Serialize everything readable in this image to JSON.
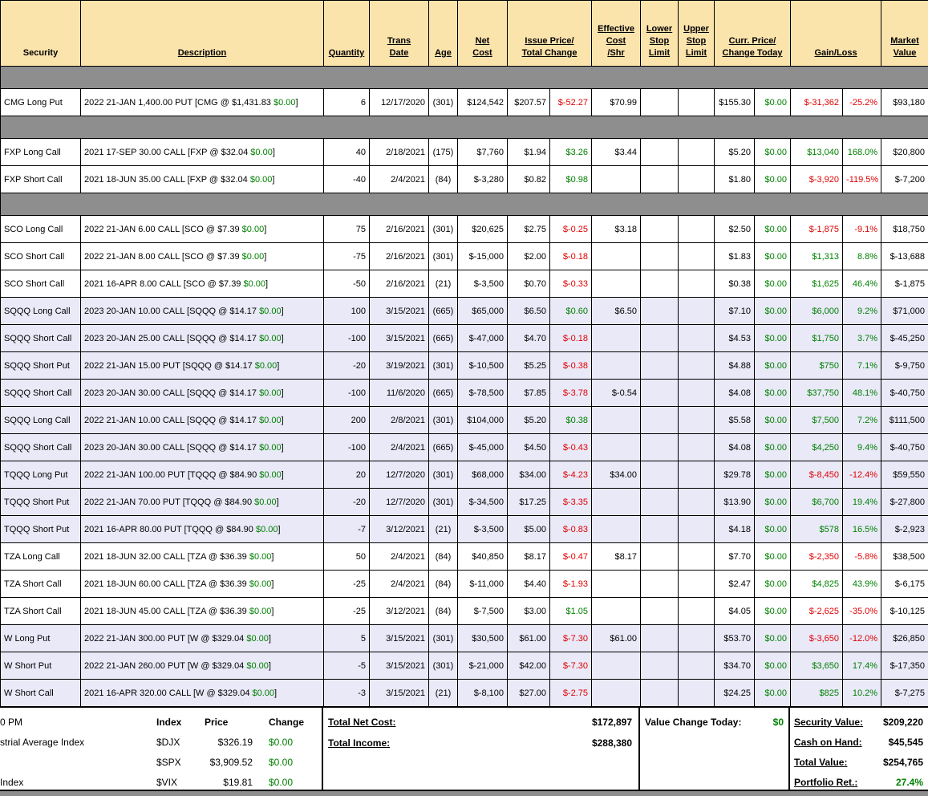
{
  "colors": {
    "header_bg": "#FBE3AC",
    "bar_bg": "#8E8E8E",
    "shaded_row_bg": "#E9E9F8",
    "positive": "#008000",
    "negative": "#E00000",
    "border": "#000000"
  },
  "header": {
    "columns": [
      {
        "id": "security",
        "lines": [
          "Security"
        ],
        "underline": false,
        "span": 1
      },
      {
        "id": "description",
        "lines": [
          "Description"
        ],
        "underline": true,
        "span": 1
      },
      {
        "id": "quantity",
        "lines": [
          "Quantity"
        ],
        "underline": true,
        "span": 1
      },
      {
        "id": "trans-date",
        "lines": [
          "Trans",
          "Date"
        ],
        "underline": true,
        "span": 1
      },
      {
        "id": "age",
        "lines": [
          "Age"
        ],
        "underline": true,
        "span": 1
      },
      {
        "id": "net-cost",
        "lines": [
          "Net",
          "Cost"
        ],
        "underline": true,
        "span": 1
      },
      {
        "id": "issue-price-total-change",
        "lines": [
          "Issue Price/",
          "Total Change"
        ],
        "underline": true,
        "span": 2
      },
      {
        "id": "effective-cost-shr",
        "lines": [
          "Effective",
          "Cost",
          "/Shr"
        ],
        "underline": true,
        "span": 1
      },
      {
        "id": "lower-stop-limit",
        "lines": [
          "Lower",
          "Stop",
          "Limit"
        ],
        "underline": true,
        "span": 1
      },
      {
        "id": "upper-stop-limit",
        "lines": [
          "Upper",
          "Stop",
          "Limit"
        ],
        "underline": true,
        "span": 1
      },
      {
        "id": "curr-price-change-today",
        "lines": [
          "Curr. Price/",
          "Change Today"
        ],
        "underline": true,
        "span": 2
      },
      {
        "id": "gain-loss",
        "lines": [
          "Gain/Loss"
        ],
        "underline": true,
        "span": 2
      },
      {
        "id": "market-value",
        "lines": [
          "Market",
          "Value"
        ],
        "underline": true,
        "span": 1
      }
    ]
  },
  "table": {
    "items": [
      {
        "type": "bar"
      },
      {
        "type": "row",
        "shaded": false,
        "security": "CMG Long Put",
        "desc_parts": [
          "2022 21-JAN 1,400.00 PUT [CMG @ $1,431.83 ",
          "$0.00",
          "]"
        ],
        "quantity": "6",
        "trans_date": "12/17/2020",
        "age": "(301)",
        "net_cost": "$124,542",
        "issue_price": "$207.57",
        "total_change": "$-52.27",
        "eff_cost": "$70.99",
        "lower_stop": "",
        "upper_stop": "",
        "curr_price": "$155.30",
        "change_today": "$0.00",
        "gain": "$-31,362",
        "gain_pct": "-25.2%",
        "market_value": "$93,180"
      },
      {
        "type": "bar"
      },
      {
        "type": "row",
        "shaded": false,
        "security": "FXP Long Call",
        "desc_parts": [
          "2021 17-SEP 30.00 CALL [FXP @ $32.04 ",
          "$0.00",
          "]"
        ],
        "quantity": "40",
        "trans_date": "2/18/2021",
        "age": "(175)",
        "net_cost": "$7,760",
        "issue_price": "$1.94",
        "total_change": "$3.26",
        "eff_cost": "$3.44",
        "lower_stop": "",
        "upper_stop": "",
        "curr_price": "$5.20",
        "change_today": "$0.00",
        "gain": "$13,040",
        "gain_pct": "168.0%",
        "market_value": "$20,800"
      },
      {
        "type": "row",
        "shaded": false,
        "security": "FXP Short Call",
        "desc_parts": [
          "2021 18-JUN 35.00 CALL [FXP @ $32.04 ",
          "$0.00",
          "]"
        ],
        "quantity": "-40",
        "trans_date": "2/4/2021",
        "age": "(84)",
        "net_cost": "$-3,280",
        "issue_price": "$0.82",
        "total_change": "$0.98",
        "eff_cost": "",
        "lower_stop": "",
        "upper_stop": "",
        "curr_price": "$1.80",
        "change_today": "$0.00",
        "gain": "$-3,920",
        "gain_pct": "-119.5%",
        "market_value": "$-7,200"
      },
      {
        "type": "bar"
      },
      {
        "type": "row",
        "shaded": false,
        "security": "SCO Long Call",
        "desc_parts": [
          "2022 21-JAN 6.00 CALL [SCO @ $7.39 ",
          "$0.00",
          "]"
        ],
        "quantity": "75",
        "trans_date": "2/16/2021",
        "age": "(301)",
        "net_cost": "$20,625",
        "issue_price": "$2.75",
        "total_change": "$-0.25",
        "eff_cost": "$3.18",
        "lower_stop": "",
        "upper_stop": "",
        "curr_price": "$2.50",
        "change_today": "$0.00",
        "gain": "$-1,875",
        "gain_pct": "-9.1%",
        "market_value": "$18,750"
      },
      {
        "type": "row",
        "shaded": false,
        "security": "SCO Short Call",
        "desc_parts": [
          "2022 21-JAN 8.00 CALL [SCO @ $7.39 ",
          "$0.00",
          "]"
        ],
        "quantity": "-75",
        "trans_date": "2/16/2021",
        "age": "(301)",
        "net_cost": "$-15,000",
        "issue_price": "$2.00",
        "total_change": "$-0.18",
        "eff_cost": "",
        "lower_stop": "",
        "upper_stop": "",
        "curr_price": "$1.83",
        "change_today": "$0.00",
        "gain": "$1,313",
        "gain_pct": "8.8%",
        "market_value": "$-13,688"
      },
      {
        "type": "row",
        "shaded": false,
        "security": "SCO Short Call",
        "desc_parts": [
          "2021 16-APR 8.00 CALL [SCO @ $7.39 ",
          "$0.00",
          "]"
        ],
        "quantity": "-50",
        "trans_date": "2/16/2021",
        "age": "(21)",
        "net_cost": "$-3,500",
        "issue_price": "$0.70",
        "total_change": "$-0.33",
        "eff_cost": "",
        "lower_stop": "",
        "upper_stop": "",
        "curr_price": "$0.38",
        "change_today": "$0.00",
        "gain": "$1,625",
        "gain_pct": "46.4%",
        "market_value": "$-1,875"
      },
      {
        "type": "row",
        "shaded": true,
        "security": "SQQQ Long Call",
        "desc_parts": [
          "2023 20-JAN 10.00 CALL [SQQQ @ $14.17 ",
          "$0.00",
          "]"
        ],
        "quantity": "100",
        "trans_date": "3/15/2021",
        "age": "(665)",
        "net_cost": "$65,000",
        "issue_price": "$6.50",
        "total_change": "$0.60",
        "eff_cost": "$6.50",
        "lower_stop": "",
        "upper_stop": "",
        "curr_price": "$7.10",
        "change_today": "$0.00",
        "gain": "$6,000",
        "gain_pct": "9.2%",
        "market_value": "$71,000"
      },
      {
        "type": "row",
        "shaded": true,
        "security": "SQQQ Short Call",
        "desc_parts": [
          "2023 20-JAN 25.00 CALL [SQQQ @ $14.17 ",
          "$0.00",
          "]"
        ],
        "quantity": "-100",
        "trans_date": "3/15/2021",
        "age": "(665)",
        "net_cost": "$-47,000",
        "issue_price": "$4.70",
        "total_change": "$-0.18",
        "eff_cost": "",
        "lower_stop": "",
        "upper_stop": "",
        "curr_price": "$4.53",
        "change_today": "$0.00",
        "gain": "$1,750",
        "gain_pct": "3.7%",
        "market_value": "$-45,250"
      },
      {
        "type": "row",
        "shaded": true,
        "security": "SQQQ Short Put",
        "desc_parts": [
          "2022 21-JAN 15.00 PUT [SQQQ @ $14.17 ",
          "$0.00",
          "]"
        ],
        "quantity": "-20",
        "trans_date": "3/19/2021",
        "age": "(301)",
        "net_cost": "$-10,500",
        "issue_price": "$5.25",
        "total_change": "$-0.38",
        "eff_cost": "",
        "lower_stop": "",
        "upper_stop": "",
        "curr_price": "$4.88",
        "change_today": "$0.00",
        "gain": "$750",
        "gain_pct": "7.1%",
        "market_value": "$-9,750"
      },
      {
        "type": "row",
        "shaded": true,
        "security": "SQQQ Short Call",
        "desc_parts": [
          "2023 20-JAN 30.00 CALL [SQQQ @ $14.17 ",
          "$0.00",
          "]"
        ],
        "quantity": "-100",
        "trans_date": "11/6/2020",
        "age": "(665)",
        "net_cost": "$-78,500",
        "issue_price": "$7.85",
        "total_change": "$-3.78",
        "eff_cost": "$-0.54",
        "lower_stop": "",
        "upper_stop": "",
        "curr_price": "$4.08",
        "change_today": "$0.00",
        "gain": "$37,750",
        "gain_pct": "48.1%",
        "market_value": "$-40,750"
      },
      {
        "type": "row",
        "shaded": true,
        "security": "SQQQ Long Call",
        "desc_parts": [
          "2022 21-JAN 10.00 CALL [SQQQ @ $14.17 ",
          "$0.00",
          "]"
        ],
        "quantity": "200",
        "trans_date": "2/8/2021",
        "age": "(301)",
        "net_cost": "$104,000",
        "issue_price": "$5.20",
        "total_change": "$0.38",
        "eff_cost": "",
        "lower_stop": "",
        "upper_stop": "",
        "curr_price": "$5.58",
        "change_today": "$0.00",
        "gain": "$7,500",
        "gain_pct": "7.2%",
        "market_value": "$111,500"
      },
      {
        "type": "row",
        "shaded": true,
        "security": "SQQQ Short Call",
        "desc_parts": [
          "2023 20-JAN 30.00 CALL [SQQQ @ $14.17 ",
          "$0.00",
          "]"
        ],
        "quantity": "-100",
        "trans_date": "2/4/2021",
        "age": "(665)",
        "net_cost": "$-45,000",
        "issue_price": "$4.50",
        "total_change": "$-0.43",
        "eff_cost": "",
        "lower_stop": "",
        "upper_stop": "",
        "curr_price": "$4.08",
        "change_today": "$0.00",
        "gain": "$4,250",
        "gain_pct": "9.4%",
        "market_value": "$-40,750"
      },
      {
        "type": "row",
        "shaded": true,
        "security": "TQQQ Long Put",
        "desc_parts": [
          "2022 21-JAN 100.00 PUT [TQQQ @ $84.90 ",
          "$0.00",
          "]"
        ],
        "quantity": "20",
        "trans_date": "12/7/2020",
        "age": "(301)",
        "net_cost": "$68,000",
        "issue_price": "$34.00",
        "total_change": "$-4.23",
        "eff_cost": "$34.00",
        "lower_stop": "",
        "upper_stop": "",
        "curr_price": "$29.78",
        "change_today": "$0.00",
        "gain": "$-8,450",
        "gain_pct": "-12.4%",
        "market_value": "$59,550"
      },
      {
        "type": "row",
        "shaded": true,
        "security": "TQQQ Short Put",
        "desc_parts": [
          "2022 21-JAN 70.00 PUT [TQQQ @ $84.90 ",
          "$0.00",
          "]"
        ],
        "quantity": "-20",
        "trans_date": "12/7/2020",
        "age": "(301)",
        "net_cost": "$-34,500",
        "issue_price": "$17.25",
        "total_change": "$-3.35",
        "eff_cost": "",
        "lower_stop": "",
        "upper_stop": "",
        "curr_price": "$13.90",
        "change_today": "$0.00",
        "gain": "$6,700",
        "gain_pct": "19.4%",
        "market_value": "$-27,800"
      },
      {
        "type": "row",
        "shaded": true,
        "security": "TQQQ Short Put",
        "desc_parts": [
          "2021 16-APR 80.00 PUT [TQQQ @ $84.90 ",
          "$0.00",
          "]"
        ],
        "quantity": "-7",
        "trans_date": "3/12/2021",
        "age": "(21)",
        "net_cost": "$-3,500",
        "issue_price": "$5.00",
        "total_change": "$-0.83",
        "eff_cost": "",
        "lower_stop": "",
        "upper_stop": "",
        "curr_price": "$4.18",
        "change_today": "$0.00",
        "gain": "$578",
        "gain_pct": "16.5%",
        "market_value": "$-2,923"
      },
      {
        "type": "row",
        "shaded": false,
        "security": "TZA Long Call",
        "desc_parts": [
          "2021 18-JUN 32.00 CALL [TZA @ $36.39 ",
          "$0.00",
          "]"
        ],
        "quantity": "50",
        "trans_date": "2/4/2021",
        "age": "(84)",
        "net_cost": "$40,850",
        "issue_price": "$8.17",
        "total_change": "$-0.47",
        "eff_cost": "$8.17",
        "lower_stop": "",
        "upper_stop": "",
        "curr_price": "$7.70",
        "change_today": "$0.00",
        "gain": "$-2,350",
        "gain_pct": "-5.8%",
        "market_value": "$38,500"
      },
      {
        "type": "row",
        "shaded": false,
        "security": "TZA Short Call",
        "desc_parts": [
          "2021 18-JUN 60.00 CALL [TZA @ $36.39 ",
          "$0.00",
          "]"
        ],
        "quantity": "-25",
        "trans_date": "2/4/2021",
        "age": "(84)",
        "net_cost": "$-11,000",
        "issue_price": "$4.40",
        "total_change": "$-1.93",
        "eff_cost": "",
        "lower_stop": "",
        "upper_stop": "",
        "curr_price": "$2.47",
        "change_today": "$0.00",
        "gain": "$4,825",
        "gain_pct": "43.9%",
        "market_value": "$-6,175"
      },
      {
        "type": "row",
        "shaded": false,
        "security": "TZA Short Call",
        "desc_parts": [
          "2021 18-JUN 45.00 CALL [TZA @ $36.39 ",
          "$0.00",
          "]"
        ],
        "quantity": "-25",
        "trans_date": "3/12/2021",
        "age": "(84)",
        "net_cost": "$-7,500",
        "issue_price": "$3.00",
        "total_change": "$1.05",
        "eff_cost": "",
        "lower_stop": "",
        "upper_stop": "",
        "curr_price": "$4.05",
        "change_today": "$0.00",
        "gain": "$-2,625",
        "gain_pct": "-35.0%",
        "market_value": "$-10,125"
      },
      {
        "type": "row",
        "shaded": true,
        "security": "W Long Put",
        "desc_parts": [
          "2022 21-JAN 300.00 PUT [W @ $329.04 ",
          "$0.00",
          "]"
        ],
        "quantity": "5",
        "trans_date": "3/15/2021",
        "age": "(301)",
        "net_cost": "$30,500",
        "issue_price": "$61.00",
        "total_change": "$-7.30",
        "eff_cost": "$61.00",
        "lower_stop": "",
        "upper_stop": "",
        "curr_price": "$53.70",
        "change_today": "$0.00",
        "gain": "$-3,650",
        "gain_pct": "-12.0%",
        "market_value": "$26,850"
      },
      {
        "type": "row",
        "shaded": true,
        "security": "W Short Put",
        "desc_parts": [
          "2022 21-JAN 260.00 PUT [W @ $329.04 ",
          "$0.00",
          "]"
        ],
        "quantity": "-5",
        "trans_date": "3/15/2021",
        "age": "(301)",
        "net_cost": "$-21,000",
        "issue_price": "$42.00",
        "total_change": "$-7.30",
        "eff_cost": "",
        "lower_stop": "",
        "upper_stop": "",
        "curr_price": "$34.70",
        "change_today": "$0.00",
        "gain": "$3,650",
        "gain_pct": "17.4%",
        "market_value": "$-17,350"
      },
      {
        "type": "row",
        "shaded": true,
        "security": "W Short Call",
        "desc_parts": [
          "2021 16-APR 320.00 CALL [W @ $329.04 ",
          "$0.00",
          "]"
        ],
        "quantity": "-3",
        "trans_date": "3/15/2021",
        "age": "(21)",
        "net_cost": "$-8,100",
        "issue_price": "$27.00",
        "total_change": "$-2.75",
        "eff_cost": "",
        "lower_stop": "",
        "upper_stop": "",
        "curr_price": "$24.25",
        "change_today": "$0.00",
        "gain": "$825",
        "gain_pct": "10.2%",
        "market_value": "$-7,275"
      }
    ]
  },
  "footer": {
    "market": {
      "time": "0 PM",
      "col_headers": [
        "Index",
        "Price",
        "Change"
      ],
      "rows": [
        {
          "name": "strial Average Index",
          "index": "$DJX",
          "price": "$326.19",
          "change": "$0.00"
        },
        {
          "name": "",
          "index": "$SPX",
          "price": "$3,909.52",
          "change": "$0.00"
        },
        {
          "name": "Index",
          "index": "$VIX",
          "price": "$19.81",
          "change": "$0.00"
        }
      ]
    },
    "totals": {
      "net_cost_label": "Total Net Cost:",
      "net_cost": "$172,897",
      "income_label": "Total Income:",
      "income": "$288,380"
    },
    "value_change": {
      "label": "Value Change Today:",
      "value": "$0"
    },
    "summary": [
      {
        "label": "Security Value:",
        "value": "$209,220"
      },
      {
        "label": "Cash on Hand:",
        "value": "$45,545"
      },
      {
        "label": "Total Value:",
        "value": "$254,765"
      },
      {
        "label": "Portfolio Ret.:",
        "value": "27.4%"
      }
    ]
  }
}
